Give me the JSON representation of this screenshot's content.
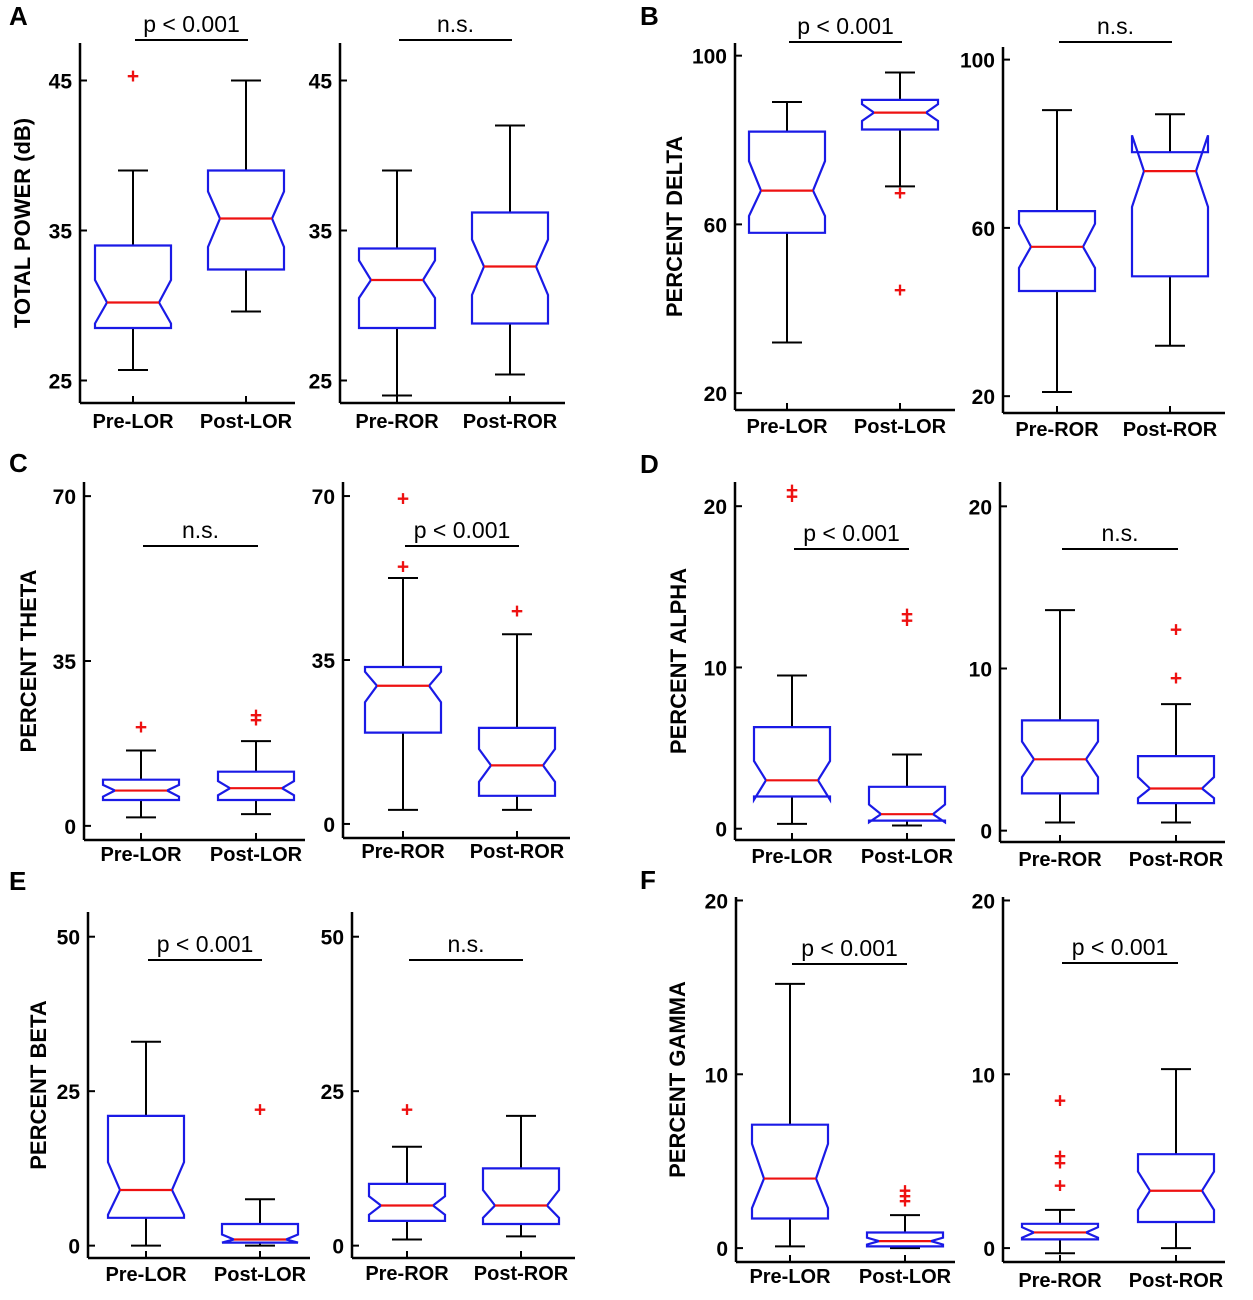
{
  "figure": {
    "box_color": "#1a1ae6",
    "median_color": "#ee1111",
    "whisker_color": "#000000",
    "outlier_color": "#ee1111",
    "outlier_symbol": "+"
  },
  "chart_data": [
    {
      "type": "box",
      "panel": "A",
      "ylabel": "TOTAL POWER (dB)",
      "plots": [
        {
          "ylim": [
            23.5,
            47.5
          ],
          "yticks": [
            25,
            35,
            45
          ],
          "significance": "p < 0.001",
          "categories": [
            "Pre-LOR",
            "Post-LOR"
          ],
          "boxes": [
            {
              "q1": 28.5,
              "median": 30.2,
              "q3": 34.0,
              "whisker_low": 25.7,
              "whisker_high": 39.0,
              "notch_low": 28.8,
              "notch_high": 31.7,
              "outliers": [
                45.3
              ]
            },
            {
              "q1": 32.4,
              "median": 35.8,
              "q3": 39.0,
              "whisker_low": 29.6,
              "whisker_high": 45.0,
              "notch_low": 33.9,
              "notch_high": 37.6,
              "outliers": []
            }
          ]
        },
        {
          "ylim": [
            23.5,
            47.5
          ],
          "yticks": [
            25,
            35,
            45
          ],
          "significance": "n.s.",
          "categories": [
            "Pre-ROR",
            "Post-ROR"
          ],
          "boxes": [
            {
              "q1": 28.5,
              "median": 31.7,
              "q3": 33.8,
              "whisker_low": 24.0,
              "whisker_high": 39.0,
              "notch_low": 30.5,
              "notch_high": 33.0,
              "outliers": []
            },
            {
              "q1": 28.8,
              "median": 32.6,
              "q3": 36.2,
              "whisker_low": 25.4,
              "whisker_high": 42.0,
              "notch_low": 30.7,
              "notch_high": 34.4,
              "outliers": []
            }
          ]
        }
      ]
    },
    {
      "type": "box",
      "panel": "B",
      "ylabel": "PERCENT DELTA",
      "plots": [
        {
          "ylim": [
            16,
            103
          ],
          "yticks": [
            20,
            60,
            100
          ],
          "significance": "p < 0.001",
          "categories": [
            "Pre-LOR",
            "Post-LOR"
          ],
          "boxes": [
            {
              "q1": 58.0,
              "median": 68.0,
              "q3": 82.0,
              "whisker_low": 32.0,
              "whisker_high": 89.0,
              "notch_low": 62.0,
              "notch_high": 75.0,
              "outliers": []
            },
            {
              "q1": 82.5,
              "median": 86.5,
              "q3": 89.5,
              "whisker_low": 69.0,
              "whisker_high": 96.0,
              "notch_low": 84.5,
              "notch_high": 88.5,
              "outliers": [
                67.5,
                44.5
              ]
            }
          ]
        },
        {
          "ylim": [
            16,
            103
          ],
          "yticks": [
            20,
            60,
            100
          ],
          "significance": "n.s.",
          "categories": [
            "Pre-ROR",
            "Post-ROR"
          ],
          "boxes": [
            {
              "q1": 45.0,
              "median": 55.5,
              "q3": 64.0,
              "whisker_low": 21.0,
              "whisker_high": 88.0,
              "notch_low": 50.5,
              "notch_high": 61.0,
              "outliers": []
            },
            {
              "q1": 48.5,
              "median": 73.5,
              "q3": 78.0,
              "whisker_low": 32.0,
              "whisker_high": 87.0,
              "notch_low": 65.0,
              "notch_high": 82.0,
              "outliers": []
            }
          ]
        }
      ]
    },
    {
      "type": "box",
      "panel": "C",
      "ylabel": "PERCENT THETA",
      "plots": [
        {
          "ylim": [
            -3,
            73
          ],
          "yticks": [
            0,
            35,
            70
          ],
          "significance": "n.s.",
          "categories": [
            "Pre-LOR",
            "Post-LOR"
          ],
          "boxes": [
            {
              "q1": 5.5,
              "median": 7.5,
              "q3": 9.8,
              "whisker_low": 1.8,
              "whisker_high": 16.0,
              "notch_low": 6.2,
              "notch_high": 8.7,
              "outliers": [
                21.0
              ]
            },
            {
              "q1": 5.5,
              "median": 8.0,
              "q3": 11.5,
              "whisker_low": 2.5,
              "whisker_high": 18.0,
              "notch_low": 6.5,
              "notch_high": 9.5,
              "outliers": [
                22.5,
                23.5
              ]
            }
          ]
        },
        {
          "ylim": [
            -3,
            73
          ],
          "yticks": [
            0,
            35,
            70
          ],
          "significance": "p < 0.001",
          "categories": [
            "Pre-ROR",
            "Post-ROR"
          ],
          "boxes": [
            {
              "q1": 19.5,
              "median": 29.5,
              "q3": 33.5,
              "whisker_low": 3.0,
              "whisker_high": 52.5,
              "notch_low": 26.0,
              "notch_high": 32.5,
              "outliers": [
                69.5,
                55.0
              ]
            },
            {
              "q1": 6.0,
              "median": 12.5,
              "q3": 20.5,
              "whisker_low": 3.0,
              "whisker_high": 40.5,
              "notch_low": 9.0,
              "notch_high": 16.0,
              "outliers": [
                45.5
              ]
            }
          ]
        }
      ]
    },
    {
      "type": "box",
      "panel": "D",
      "ylabel": "PERCENT ALPHA",
      "plots": [
        {
          "ylim": [
            -0.7,
            21.5
          ],
          "yticks": [
            0,
            10,
            20
          ],
          "significance": "p < 0.001",
          "categories": [
            "Pre-LOR",
            "Post-LOR"
          ],
          "boxes": [
            {
              "q1": 2.0,
              "median": 3.0,
              "q3": 6.3,
              "whisker_low": 0.3,
              "whisker_high": 9.5,
              "notch_low": 1.8,
              "notch_high": 4.2,
              "outliers": [
                20.6,
                21.0
              ]
            },
            {
              "q1": 0.5,
              "median": 0.9,
              "q3": 2.6,
              "whisker_low": 0.2,
              "whisker_high": 4.6,
              "notch_low": 0.4,
              "notch_high": 1.5,
              "outliers": [
                12.9,
                13.3
              ]
            }
          ]
        },
        {
          "ylim": [
            -0.7,
            21.5
          ],
          "yticks": [
            0,
            10,
            20
          ],
          "significance": "n.s.",
          "categories": [
            "Pre-ROR",
            "Post-ROR"
          ],
          "boxes": [
            {
              "q1": 2.3,
              "median": 4.4,
              "q3": 6.8,
              "whisker_low": 0.5,
              "whisker_high": 13.6,
              "notch_low": 3.3,
              "notch_high": 5.5,
              "outliers": []
            },
            {
              "q1": 1.7,
              "median": 2.6,
              "q3": 4.6,
              "whisker_low": 0.5,
              "whisker_high": 7.8,
              "notch_low": 2.0,
              "notch_high": 3.3,
              "outliers": [
                12.4,
                9.4
              ]
            }
          ]
        }
      ]
    },
    {
      "type": "box",
      "panel": "E",
      "ylabel": "PERCENT BETA",
      "plots": [
        {
          "ylim": [
            -2,
            54
          ],
          "yticks": [
            0,
            25,
            50
          ],
          "significance": "p < 0.001",
          "categories": [
            "Pre-LOR",
            "Post-LOR"
          ],
          "boxes": [
            {
              "q1": 4.5,
              "median": 9.0,
              "q3": 21.0,
              "whisker_low": 0.0,
              "whisker_high": 33.0,
              "notch_low": 5.0,
              "notch_high": 13.5,
              "outliers": []
            },
            {
              "q1": 0.5,
              "median": 1.0,
              "q3": 3.5,
              "whisker_low": 0.0,
              "whisker_high": 7.5,
              "notch_low": 0.5,
              "notch_high": 1.8,
              "outliers": [
                22.0
              ]
            }
          ]
        },
        {
          "ylim": [
            -2,
            54
          ],
          "yticks": [
            0,
            25,
            50
          ],
          "significance": "n.s.",
          "categories": [
            "Pre-ROR",
            "Post-ROR"
          ],
          "boxes": [
            {
              "q1": 4.0,
              "median": 6.5,
              "q3": 10.0,
              "whisker_low": 1.0,
              "whisker_high": 16.0,
              "notch_low": 5.0,
              "notch_high": 8.0,
              "outliers": [
                22.0
              ]
            },
            {
              "q1": 3.5,
              "median": 6.5,
              "q3": 12.5,
              "whisker_low": 1.5,
              "whisker_high": 21.0,
              "notch_low": 4.5,
              "notch_high": 9.0,
              "outliers": []
            }
          ]
        }
      ]
    },
    {
      "type": "box",
      "panel": "F",
      "ylabel": "PERCENT GAMMA",
      "plots": [
        {
          "ylim": [
            -0.8,
            20.2
          ],
          "yticks": [
            0,
            10,
            20
          ],
          "significance": "p < 0.001",
          "categories": [
            "Pre-LOR",
            "Post-LOR"
          ],
          "boxes": [
            {
              "q1": 1.7,
              "median": 4.0,
              "q3": 7.1,
              "whisker_low": 0.1,
              "whisker_high": 15.2,
              "notch_low": 2.3,
              "notch_high": 6.0,
              "outliers": []
            },
            {
              "q1": 0.1,
              "median": 0.4,
              "q3": 0.9,
              "whisker_low": 0.0,
              "whisker_high": 1.9,
              "notch_low": 0.2,
              "notch_high": 0.6,
              "outliers": [
                2.7,
                3.0,
                3.3
              ]
            }
          ]
        },
        {
          "ylim": [
            -0.8,
            20.2
          ],
          "yticks": [
            0,
            10,
            20
          ],
          "significance": "p < 0.001",
          "categories": [
            "Pre-ROR",
            "Post-ROR"
          ],
          "boxes": [
            {
              "q1": 0.5,
              "median": 0.9,
              "q3": 1.4,
              "whisker_low": -0.3,
              "whisker_high": 2.2,
              "notch_low": 0.6,
              "notch_high": 1.2,
              "outliers": [
                8.5,
                5.3,
                4.9,
                3.6
              ]
            },
            {
              "q1": 1.5,
              "median": 3.3,
              "q3": 5.4,
              "whisker_low": 0.0,
              "whisker_high": 10.3,
              "notch_low": 2.2,
              "notch_high": 4.4,
              "outliers": []
            }
          ]
        }
      ]
    }
  ]
}
